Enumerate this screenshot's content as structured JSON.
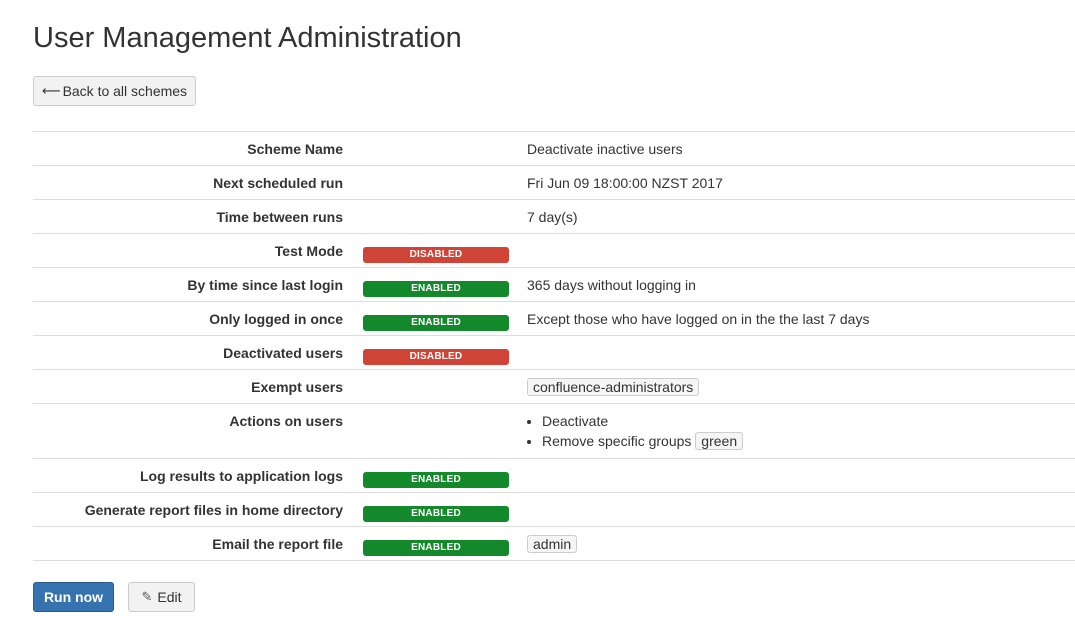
{
  "page": {
    "title": "User Management Administration"
  },
  "toolbar": {
    "back_label": "Back to all schemes",
    "back_icon": "left-arrow-icon"
  },
  "details": {
    "scheme_name": {
      "label": "Scheme Name",
      "value": "Deactivate inactive users"
    },
    "next_run": {
      "label": "Next scheduled run",
      "value": "Fri Jun 09 18:00:00 NZST 2017"
    },
    "time_between": {
      "label": "Time between runs",
      "value": "7 day(s)"
    },
    "test_mode": {
      "label": "Test Mode",
      "status": "DISABLED"
    },
    "last_login": {
      "label": "By time since last login",
      "status": "ENABLED",
      "value": "365 days without logging in"
    },
    "logged_once": {
      "label": "Only logged in once",
      "status": "ENABLED",
      "value": "Except those who have logged on in the the last 7 days"
    },
    "deactivated": {
      "label": "Deactivated users",
      "status": "DISABLED"
    },
    "exempt": {
      "label": "Exempt users",
      "tag": "confluence-administrators"
    },
    "actions": {
      "label": "Actions on users",
      "item1": "Deactivate",
      "item2": "Remove specific groups",
      "item2_tag": "green"
    },
    "log_results": {
      "label": "Log results to application logs",
      "status": "ENABLED"
    },
    "report_files": {
      "label": "Generate report files in home directory",
      "status": "ENABLED"
    },
    "email_report": {
      "label": "Email the report file",
      "status": "ENABLED",
      "tag": "admin"
    }
  },
  "buttons": {
    "run_now": "Run now",
    "edit": "Edit",
    "edit_icon": "pencil-icon"
  },
  "colors": {
    "enabled": "#14892c",
    "disabled": "#d04437",
    "primary": "#3572b0"
  }
}
